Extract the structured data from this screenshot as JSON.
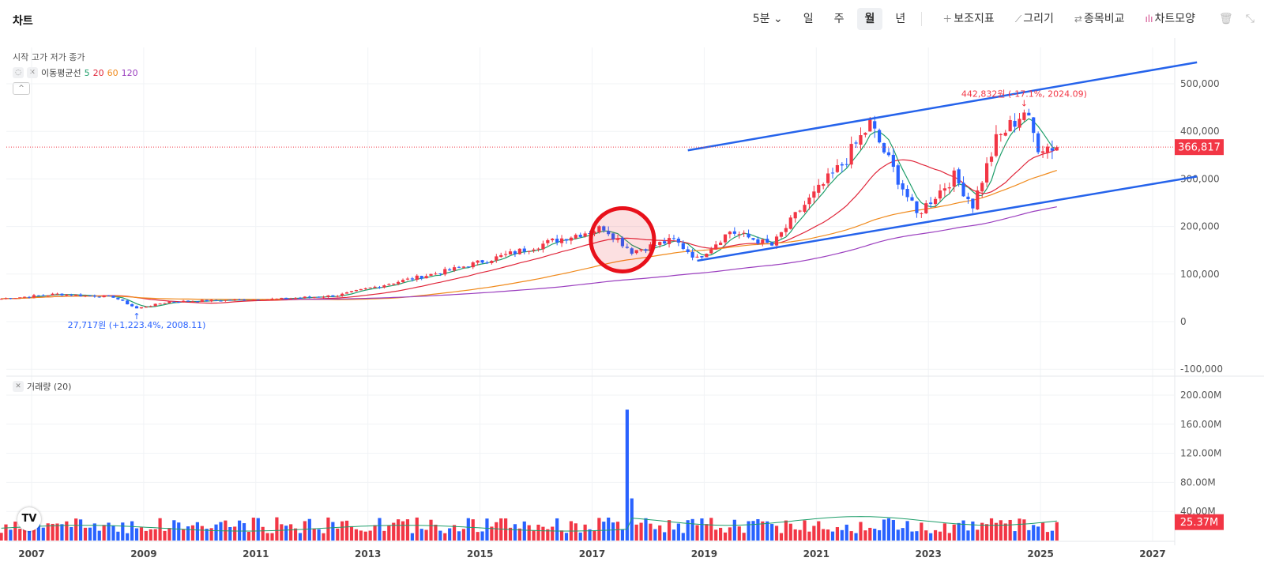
{
  "header": {
    "title": "차트",
    "interval": "5분",
    "periods": [
      "일",
      "주",
      "월",
      "년"
    ],
    "active_period": "월",
    "tools": [
      "보조지표",
      "그리기",
      "종목비교",
      "차트모양"
    ]
  },
  "legend": {
    "ohlc_label": "시작 고가 저가 종가",
    "ma_label": "이동평균선",
    "ma_periods": [
      "5",
      "20",
      "60",
      "120"
    ],
    "ma_colors": [
      "#1e9e6a",
      "#e0263a",
      "#f08a1c",
      "#9b3fbf"
    ]
  },
  "volume_legend": "거래량 (20)",
  "logo_text": "TV",
  "colors": {
    "up": "#f23645",
    "down": "#2962ff",
    "trendline": "#2563eb",
    "highlight": "#e8101a"
  },
  "chart_data": {
    "type": "candlestick",
    "x_ticks": [
      "2007",
      "2009",
      "2011",
      "2013",
      "2015",
      "2017",
      "2019",
      "2021",
      "2023",
      "2025",
      "2027"
    ],
    "price_axis": {
      "ticks": [
        "500,000",
        "400,000",
        "300,000",
        "200,000",
        "100,000",
        "0",
        "-100,000"
      ],
      "range": [
        -100000,
        550000
      ]
    },
    "volume_axis": {
      "ticks": [
        "200.00M",
        "160.00M",
        "120.00M",
        "80.00M",
        "40.00M"
      ],
      "range": [
        0,
        200000000
      ]
    },
    "last_price_label": "366,817",
    "last_price": 366817,
    "last_volume_label": "25.37M",
    "last_volume": 25370000,
    "annotations": {
      "high": "442,832원 (-17.1%, 2024.09)",
      "low": "27,717원 (+1,223.4%, 2008.11)"
    },
    "price_points": [
      [
        "2006.06",
        48000
      ],
      [
        "2007.06",
        58000
      ],
      [
        "2008.06",
        52000
      ],
      [
        "2008.11",
        27717
      ],
      [
        "2009.06",
        42000
      ],
      [
        "2010.06",
        45000
      ],
      [
        "2011.06",
        48000
      ],
      [
        "2012.06",
        55000
      ],
      [
        "2013.06",
        82000
      ],
      [
        "2014.06",
        108000
      ],
      [
        "2015.06",
        140000
      ],
      [
        "2016.06",
        175000
      ],
      [
        "2017.03",
        198000
      ],
      [
        "2017.09",
        148000
      ],
      [
        "2018.06",
        172000
      ],
      [
        "2018.11",
        132000
      ],
      [
        "2019.06",
        190000
      ],
      [
        "2020.03",
        160000
      ],
      [
        "2020.09",
        235000
      ],
      [
        "2021.06",
        330000
      ],
      [
        "2021.12",
        415000
      ],
      [
        "2022.06",
        300000
      ],
      [
        "2022.10",
        225000
      ],
      [
        "2023.06",
        305000
      ],
      [
        "2023.10",
        245000
      ],
      [
        "2024.03",
        380000
      ],
      [
        "2024.09",
        442832
      ],
      [
        "2024.12",
        370000
      ],
      [
        "2025.04",
        366817
      ]
    ],
    "volume_spike": {
      "date": "2017.08",
      "value": 180000000
    },
    "trendlines": [
      {
        "from": [
          "2018.09",
          360000
        ],
        "to": [
          "2027.10",
          545000
        ]
      },
      {
        "from": [
          "2018.11",
          128000
        ],
        "to": [
          "2027.10",
          305000
        ]
      }
    ],
    "highlight_date": "2017.07"
  }
}
